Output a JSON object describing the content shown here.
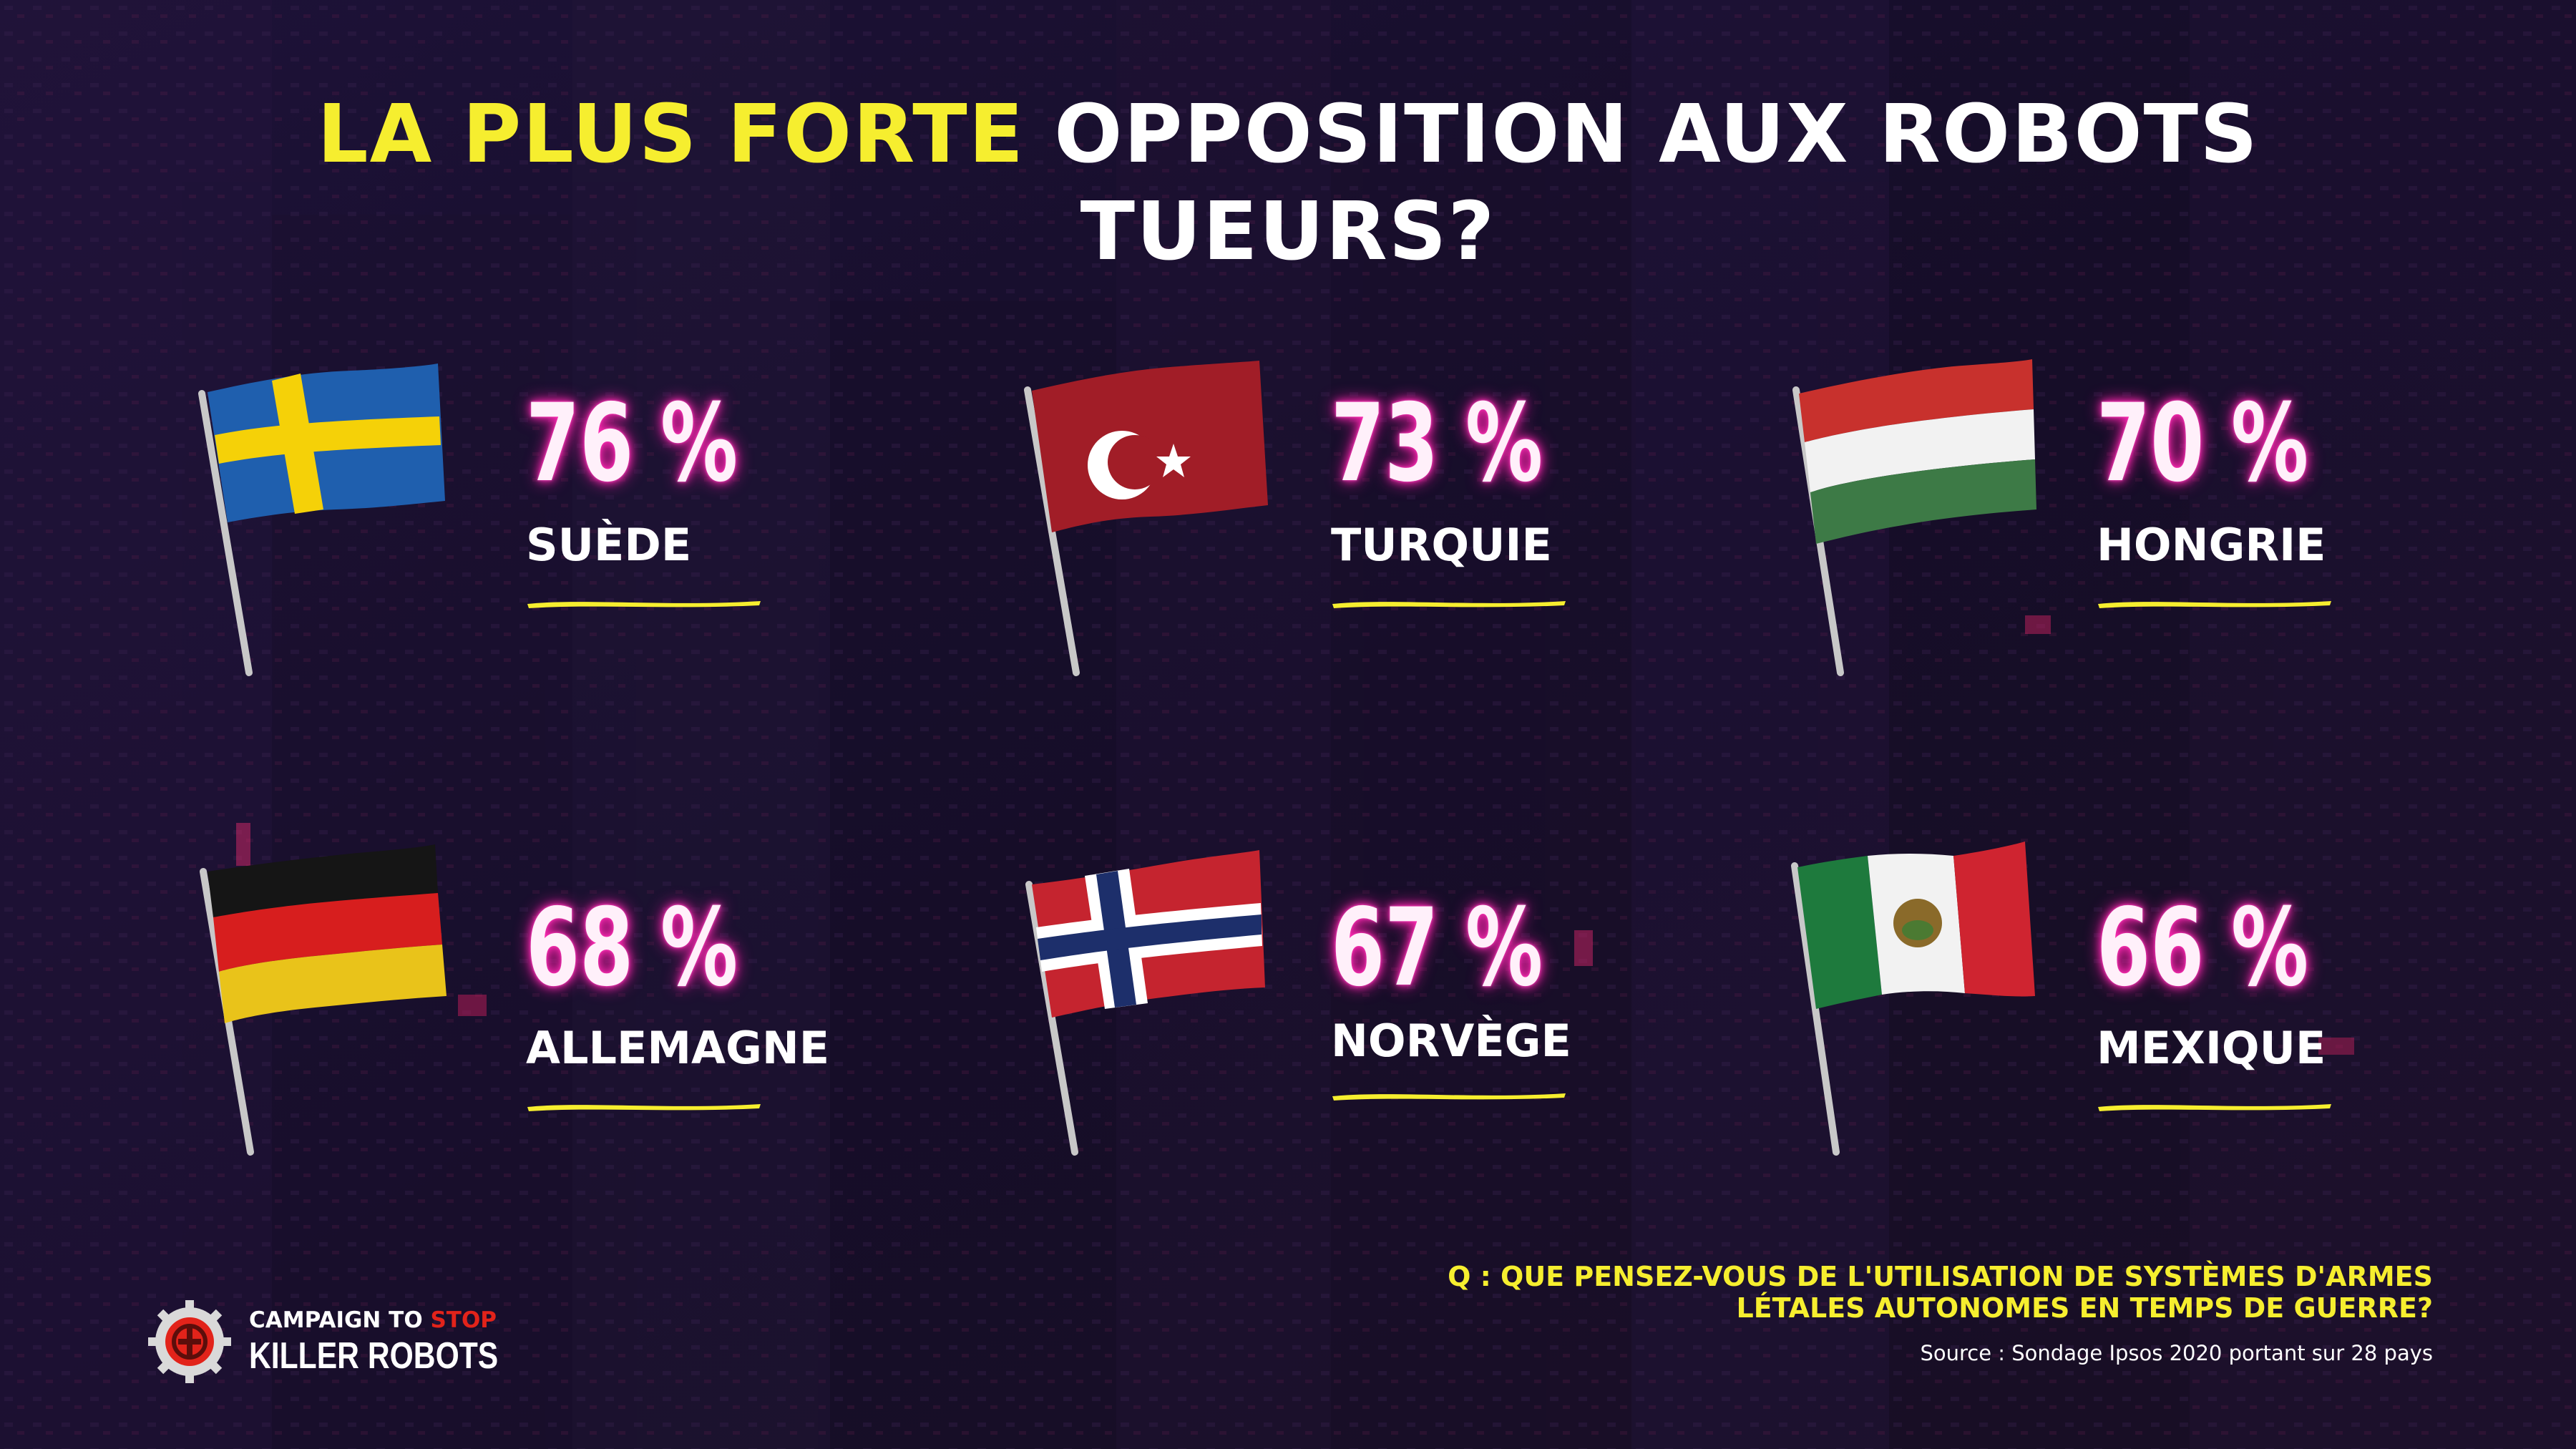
{
  "title": {
    "highlight": "LA PLUS FORTE",
    "rest_line1": "OPPOSITION AUX ROBOTS",
    "line2": "TUEURS?"
  },
  "colors": {
    "title_highlight": "#f6ee2f",
    "percent_glow": "#ff2fb6",
    "underline": "#f6ee2f",
    "background": "#1a0f2e"
  },
  "countries": [
    {
      "percent": "76 %",
      "name": "SUÈDE",
      "flag": "sweden-flag-icon"
    },
    {
      "percent": "73 %",
      "name": "TURQUIE",
      "flag": "turkey-flag-icon"
    },
    {
      "percent": "70 %",
      "name": "HONGRIE",
      "flag": "hungary-flag-icon"
    },
    {
      "percent": "68 %",
      "name": "ALLEMAGNE",
      "flag": "germany-flag-icon"
    },
    {
      "percent": "67 %",
      "name": "NORVÈGE",
      "flag": "norway-flag-icon"
    },
    {
      "percent": "66 %",
      "name": "MEXIQUE",
      "flag": "mexico-flag-icon"
    }
  ],
  "question": {
    "line1": "Q : QUE PENSEZ-VOUS DE L'UTILISATION DE SYSTÈMES D'ARMES",
    "line2": "LÉTALES AUTONOMES EN TEMPS DE GUERRE?"
  },
  "source": "Source : Sondage Ipsos 2020 portant sur 28 pays",
  "logo": {
    "line1_a": "CAMPAIGN TO",
    "line1_b": "STOP",
    "line2": "KILLER ROBOTS",
    "icon": "gear-robot-logo-icon"
  }
}
